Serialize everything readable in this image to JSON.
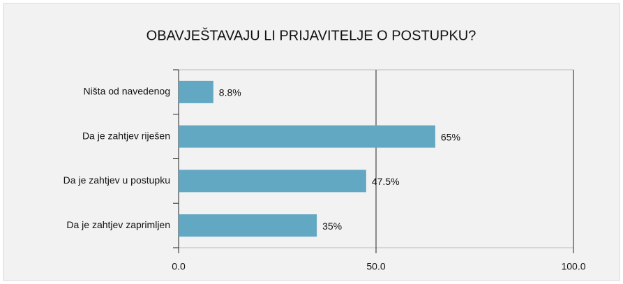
{
  "chart_data": {
    "type": "barh",
    "title": "OBAVJEŠTAVAJU LI PRIJAVITELJE O POSTUPKU?",
    "categories": [
      "Ništa od navedenog",
      "Da je zahtjev riješen",
      "Da je zahtjev u postupku",
      "Da je zahtjev zaprimljen"
    ],
    "values": [
      8.8,
      65,
      47.5,
      35
    ],
    "value_labels": [
      "8.8%",
      "65%",
      "47.5%",
      "35%"
    ],
    "color": "#62a8c2",
    "xlim": [
      0,
      100
    ],
    "xticks": [
      {
        "value": 0,
        "label": "0.0"
      },
      {
        "value": 50,
        "label": "50.0"
      },
      {
        "value": 100,
        "label": "100.0"
      }
    ],
    "grid": true
  }
}
